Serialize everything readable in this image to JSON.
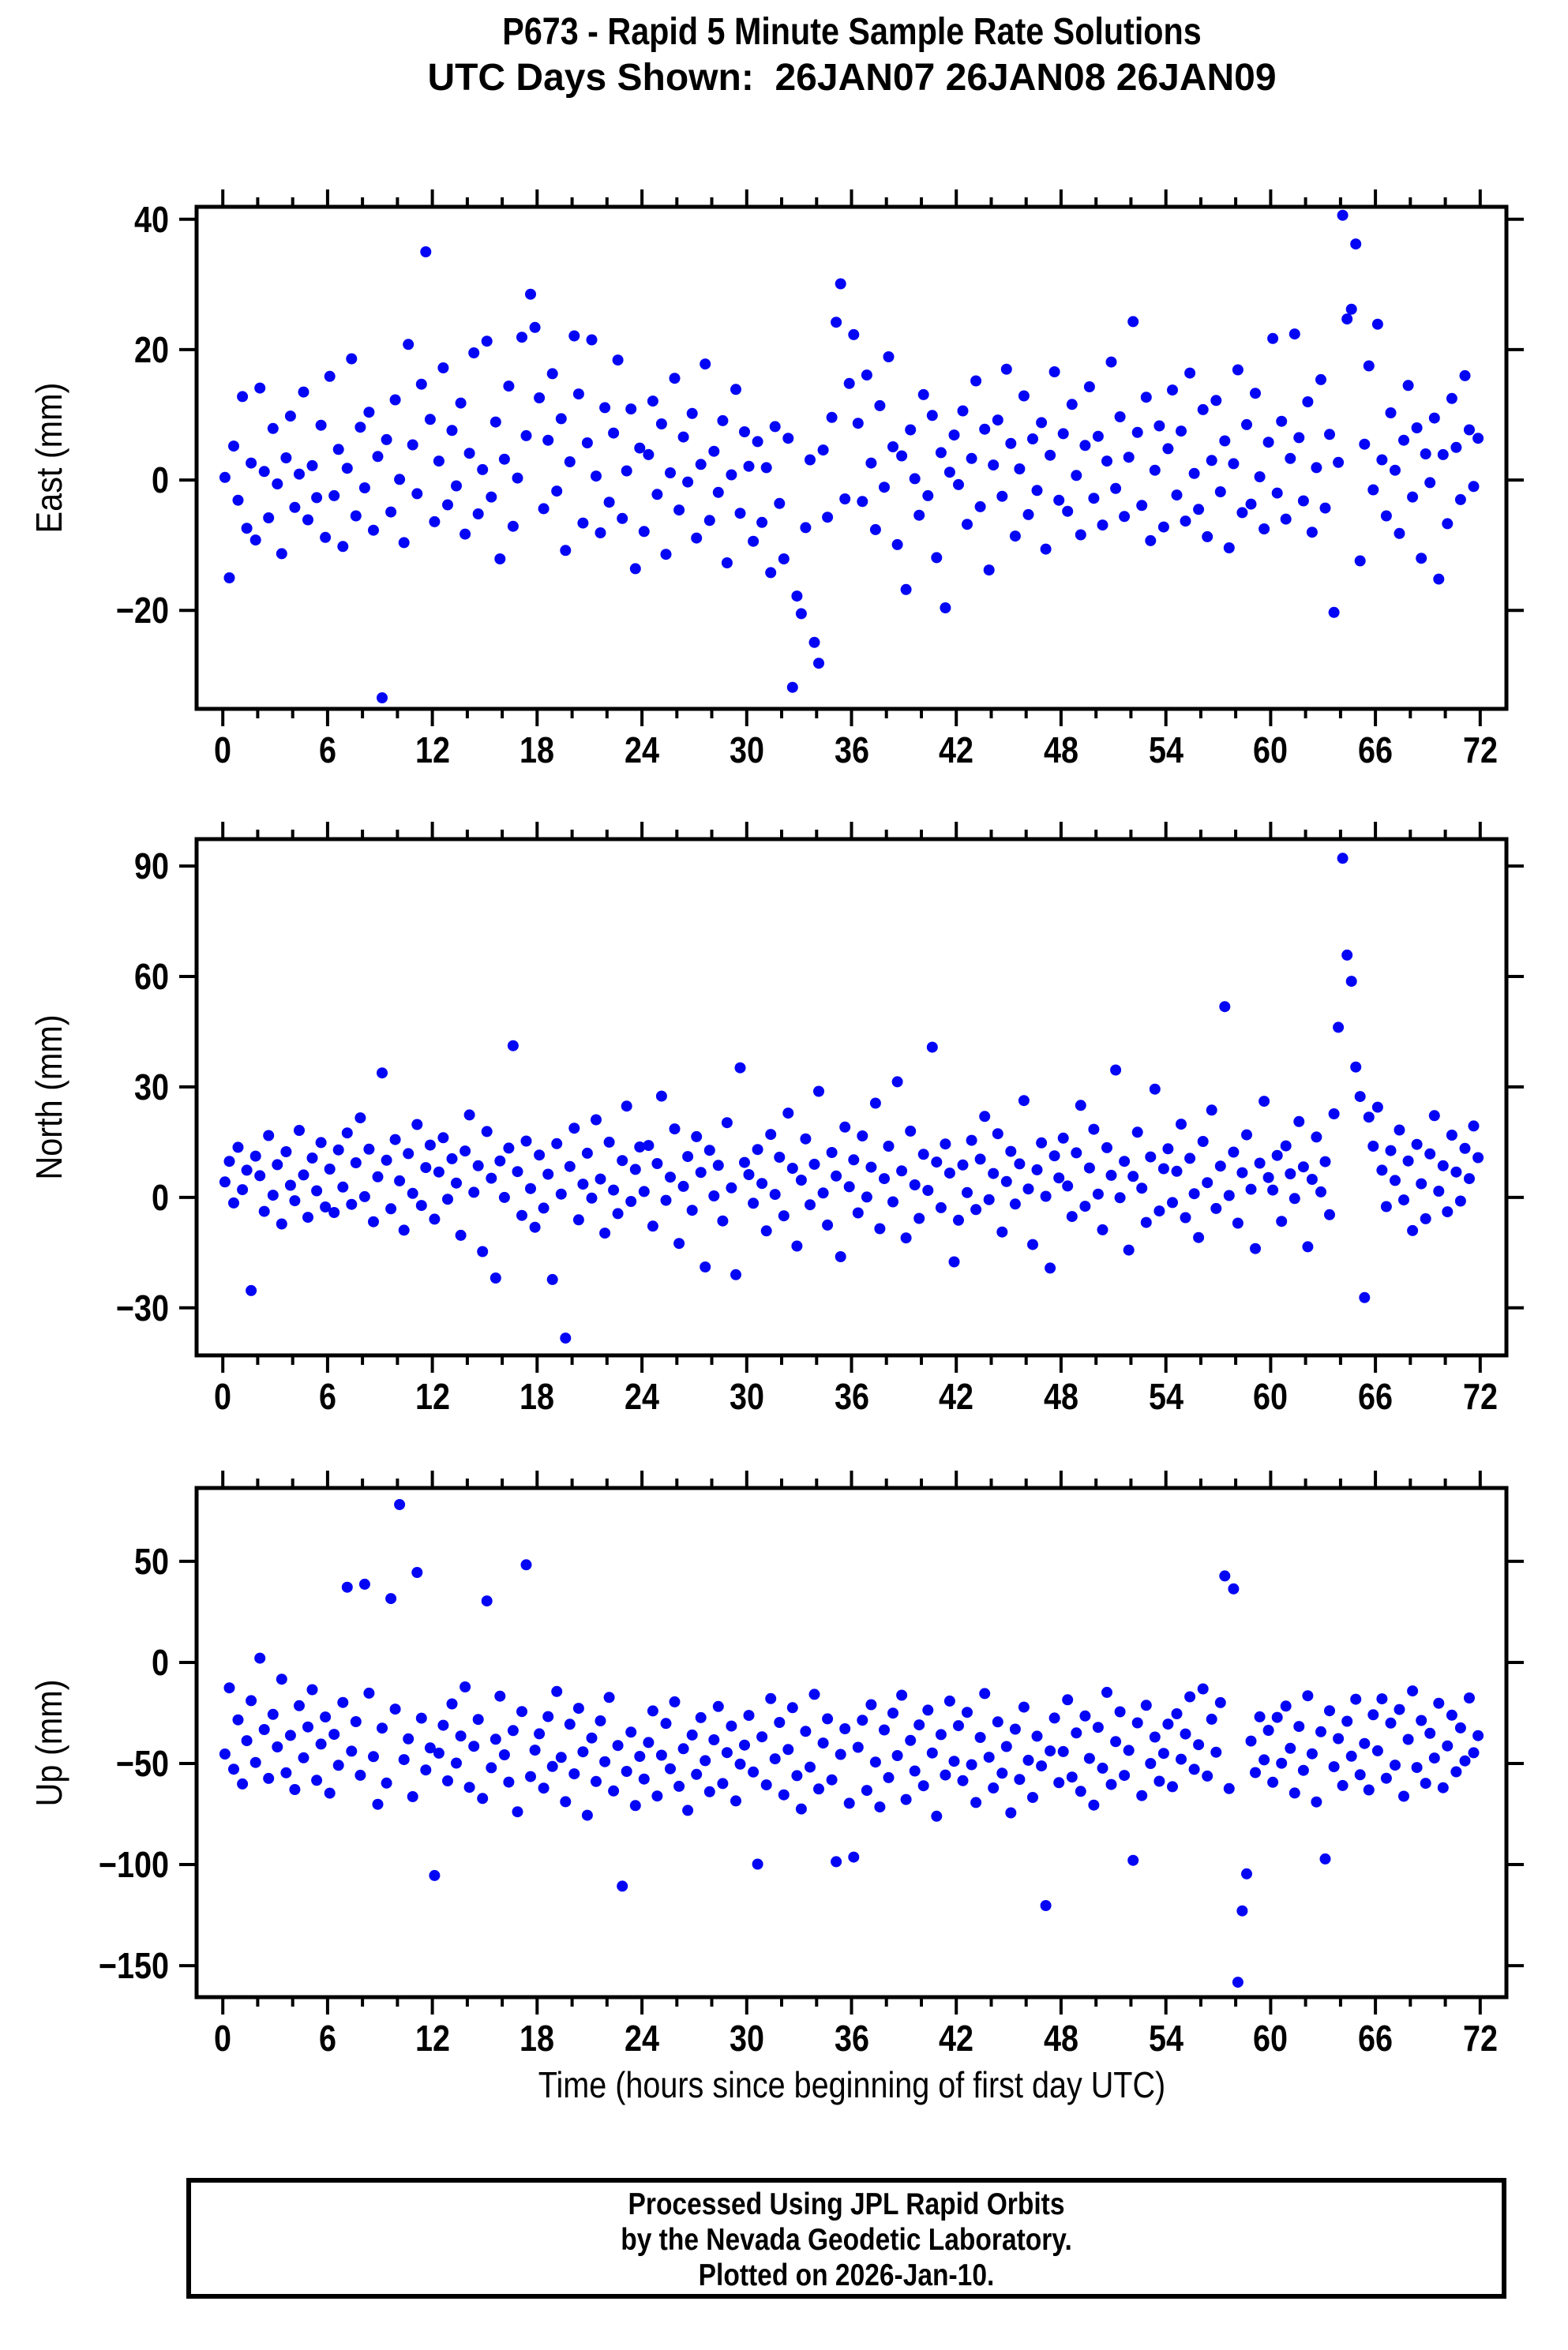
{
  "title": "P673 - Rapid 5 Minute Sample Rate Solutions",
  "subtitle": "UTC Days Shown:  26JAN07 26JAN08 26JAN09",
  "footer": {
    "lines": [
      "Processed Using JPL Rapid Orbits",
      "by the Nevada Geodetic Laboratory.",
      "Plotted on 2026-Jan-10."
    ]
  },
  "chart_data": {
    "type": "scatter",
    "title": "P673 - Rapid 5 Minute Sample Rate Solutions",
    "subtitle": "UTC Days Shown:  26JAN07 26JAN08 26JAN09",
    "marker": {
      "color": "#0505f5",
      "radius_px": 7
    },
    "grid": "off",
    "legend": "none",
    "x": {
      "label": "Time (hours since beginning of first day UTC)",
      "range": [
        -1.5,
        73.5
      ],
      "major_ticks": [
        0,
        6,
        12,
        18,
        24,
        30,
        36,
        42,
        48,
        54,
        60,
        66,
        72
      ],
      "minor_step": 2,
      "start": 0.125,
      "step": 0.25
    },
    "panels": [
      {
        "name": "east",
        "ylabel": "East (mm)",
        "yrange": [
          -35.1,
          41.9
        ],
        "yticks": [
          40,
          20,
          0,
          -20
        ],
        "values": [
          0.4,
          -15.0,
          5.2,
          -3.1,
          12.8,
          -7.4,
          2.6,
          -9.2,
          14.1,
          1.3,
          -5.8,
          7.9,
          -0.6,
          -11.3,
          3.4,
          9.8,
          -4.2,
          0.9,
          13.5,
          -6.1,
          2.2,
          -2.7,
          8.4,
          -8.8,
          15.9,
          -2.4,
          4.7,
          -10.2,
          1.8,
          18.6,
          -5.5,
          8.1,
          -1.2,
          10.4,
          -7.7,
          3.6,
          -33.4,
          6.2,
          -4.9,
          12.3,
          0.1,
          -9.6,
          20.8,
          5.4,
          -2.1,
          14.7,
          35.0,
          9.3,
          -6.4,
          2.9,
          17.2,
          -3.8,
          7.6,
          -0.9,
          11.8,
          -8.3,
          4.1,
          19.5,
          -5.2,
          1.6,
          21.3,
          -2.6,
          8.9,
          -12.1,
          3.2,
          14.4,
          -7.1,
          0.3,
          21.9,
          6.8,
          28.5,
          23.4,
          12.6,
          -4.4,
          6.1,
          16.3,
          -1.7,
          9.4,
          -10.8,
          2.8,
          22.1,
          13.2,
          -6.6,
          5.7,
          21.5,
          0.6,
          -8.1,
          11.1,
          -3.4,
          7.2,
          18.4,
          -5.9,
          1.4,
          10.9,
          -13.6,
          4.9,
          -7.9,
          3.9,
          12.1,
          -2.2,
          8.6,
          -11.4,
          1.1,
          15.6,
          -4.6,
          6.6,
          -0.3,
          10.2,
          -8.9,
          2.4,
          17.8,
          -6.2,
          4.4,
          -1.9,
          9.1,
          -12.7,
          0.8,
          13.9,
          -5.1,
          7.4,
          2.1,
          -9.4,
          5.9,
          -6.5,
          1.9,
          -14.2,
          8.2,
          -3.6,
          -12.1,
          6.4,
          -31.8,
          -17.8,
          -20.5,
          -7.3,
          3.1,
          -24.9,
          -28.1,
          4.6,
          -5.7,
          9.6,
          24.2,
          30.1,
          -2.9,
          14.8,
          22.3,
          8.7,
          -3.3,
          16.1,
          2.6,
          -7.6,
          11.4,
          -1.1,
          18.9,
          5.1,
          -9.9,
          3.7,
          -16.8,
          7.7,
          0.2,
          -5.4,
          13.1,
          -2.4,
          9.9,
          -11.9,
          4.2,
          -19.6,
          1.2,
          6.9,
          -0.7,
          10.6,
          -6.8,
          3.3,
          15.2,
          -4.1,
          7.8,
          -13.8,
          2.3,
          9.2,
          -2.5,
          17.0,
          5.6,
          -8.6,
          1.7,
          12.9,
          -5.3,
          6.3,
          -1.6,
          8.8,
          -10.6,
          3.8,
          16.6,
          -3.1,
          7.1,
          -4.8,
          11.6,
          0.7,
          -8.4,
          5.3,
          14.3,
          -2.8,
          6.7,
          -6.9,
          2.9,
          18.1,
          -1.3,
          9.7,
          -5.6,
          3.5,
          24.3,
          7.3,
          -3.9,
          12.7,
          -9.3,
          1.5,
          8.3,
          -7.2,
          4.8,
          13.8,
          -2.3,
          7.5,
          -6.3,
          16.4,
          1.0,
          -4.5,
          10.8,
          -8.7,
          3.0,
          12.2,
          -1.8,
          6.0,
          -10.4,
          2.5,
          16.9,
          -5.0,
          8.5,
          -3.7,
          13.3,
          0.5,
          -7.5,
          5.8,
          21.7,
          -2.0,
          9.0,
          -6.0,
          3.3,
          22.4,
          6.5,
          -3.2,
          12.0,
          -8.0,
          1.9,
          15.4,
          -4.3,
          7.0,
          -20.3,
          2.7,
          40.6,
          24.7,
          26.2,
          36.2,
          -12.4,
          5.5,
          17.5,
          -1.5,
          23.9,
          3.1,
          -5.5,
          10.3,
          1.5,
          -8.2,
          6.1,
          14.5,
          -2.6,
          8.0,
          -12.0,
          4.0,
          -0.4,
          9.5,
          -15.2,
          3.9,
          -6.7,
          12.5,
          5.0,
          -3.0,
          16.0,
          7.7,
          -1.0,
          6.4
        ]
      },
      {
        "name": "north",
        "ylabel": "North (mm)",
        "yrange": [
          -42.9,
          97.3
        ],
        "yticks": [
          90,
          60,
          30,
          0,
          -30
        ],
        "values": [
          4.2,
          9.8,
          -1.5,
          13.6,
          2.1,
          7.4,
          -25.3,
          11.2,
          5.9,
          -3.8,
          16.8,
          0.6,
          8.9,
          -7.2,
          12.4,
          3.3,
          -0.9,
          18.2,
          6.1,
          -5.4,
          10.7,
          1.8,
          14.9,
          -2.6,
          7.7,
          -4.1,
          12.9,
          2.8,
          17.5,
          -1.9,
          9.4,
          21.6,
          0.2,
          13.1,
          -6.6,
          5.6,
          33.8,
          10.1,
          -3.1,
          15.7,
          4.5,
          -8.9,
          11.9,
          1.1,
          19.8,
          -2.2,
          8.1,
          14.2,
          -5.9,
          6.9,
          16.2,
          -0.5,
          10.5,
          3.9,
          -10.3,
          12.6,
          22.4,
          1.4,
          8.6,
          -14.7,
          17.9,
          5.2,
          -21.9,
          9.9,
          0.0,
          13.4,
          41.2,
          7.0,
          -4.9,
          15.3,
          2.4,
          -8.1,
          11.5,
          -2.9,
          6.3,
          -22.3,
          14.6,
          0.9,
          -38.2,
          8.4,
          18.8,
          -6.1,
          3.6,
          12.0,
          -0.2,
          21.1,
          5.0,
          -9.7,
          15.0,
          2.0,
          -4.4,
          10.0,
          24.8,
          -1.1,
          7.6,
          13.7,
          1.6,
          14.1,
          -7.8,
          9.2,
          27.5,
          -0.8,
          5.5,
          18.6,
          -12.5,
          3.0,
          11.1,
          -3.5,
          16.5,
          6.8,
          -18.9,
          12.8,
          0.4,
          8.7,
          -6.4,
          20.3,
          2.6,
          -21.0,
          35.2,
          9.5,
          6.2,
          -1.6,
          13.0,
          3.8,
          -9.1,
          17.1,
          0.8,
          10.9,
          -5.0,
          22.9,
          7.9,
          -13.2,
          4.7,
          15.9,
          -2.0,
          9.0,
          28.8,
          1.2,
          -7.5,
          12.2,
          5.8,
          -16.1,
          19.1,
          2.9,
          10.2,
          -4.2,
          16.7,
          0.1,
          8.2,
          25.6,
          -8.5,
          5.1,
          13.9,
          -1.2,
          31.4,
          7.2,
          -11.0,
          18.0,
          3.4,
          -5.7,
          11.7,
          1.9,
          40.8,
          9.6,
          -2.8,
          14.5,
          6.6,
          -17.5,
          -6.2,
          8.8,
          1.3,
          15.5,
          -3.3,
          10.4,
          22.0,
          -0.6,
          6.5,
          17.3,
          -9.4,
          4.3,
          12.5,
          -1.8,
          9.1,
          26.3,
          2.3,
          -12.8,
          7.5,
          14.8,
          0.3,
          -19.2,
          11.3,
          5.3,
          16.1,
          3.1,
          -5.2,
          12.1,
          25.0,
          -2.4,
          8.0,
          18.5,
          0.9,
          -8.8,
          13.5,
          6.0,
          34.6,
          -0.1,
          9.8,
          -14.3,
          5.7,
          17.7,
          2.5,
          -6.8,
          11.0,
          29.4,
          -3.7,
          7.8,
          13.2,
          -1.4,
          7.1,
          19.9,
          -5.5,
          10.6,
          1.0,
          -10.9,
          15.2,
          4.0,
          23.7,
          -3.0,
          8.5,
          51.8,
          0.5,
          12.3,
          -7.0,
          6.7,
          17.0,
          2.2,
          -13.9,
          9.3,
          26.1,
          5.4,
          2.0,
          11.4,
          -6.5,
          14.0,
          6.4,
          -0.3,
          20.6,
          8.3,
          -13.4,
          4.9,
          16.4,
          1.5,
          9.7,
          -4.7,
          22.7,
          46.2,
          92.1,
          65.8,
          58.7,
          35.4,
          27.4,
          -27.2,
          21.8,
          13.9,
          24.5,
          7.4,
          -2.5,
          12.7,
          4.6,
          18.3,
          -0.7,
          9.9,
          -9.0,
          14.4,
          3.7,
          -5.8,
          11.8,
          22.2,
          1.7,
          8.6,
          -3.9,
          16.9,
          6.9,
          -1.0,
          13.3,
          5.1,
          19.4,
          10.8
        ]
      },
      {
        "name": "up",
        "ylabel": "Up (mm)",
        "yrange": [
          -165.6,
          86.3
        ],
        "yticks": [
          50,
          0,
          -50,
          -100,
          -150
        ],
        "values": [
          -45.3,
          -12.6,
          -52.8,
          -28.4,
          -60.1,
          -38.7,
          -18.9,
          -49.5,
          2.1,
          -33.2,
          -57.4,
          -25.7,
          -41.8,
          -8.3,
          -54.6,
          -36.1,
          -62.9,
          -21.4,
          -47.2,
          -31.9,
          -13.5,
          -58.3,
          -40.4,
          -27.0,
          -64.7,
          -35.6,
          -50.9,
          -19.8,
          37.2,
          -43.9,
          -29.3,
          -55.8,
          38.7,
          -15.2,
          -46.6,
          -70.2,
          -32.5,
          -59.7,
          31.6,
          -23.1,
          78.1,
          -48.1,
          -37.8,
          -66.4,
          44.5,
          -27.6,
          -53.2,
          -42.3,
          -105.4,
          -44.9,
          -31.1,
          -58.6,
          -20.5,
          -49.8,
          -36.4,
          -12.1,
          -61.8,
          -41.5,
          -28.2,
          -67.3,
          30.4,
          -52.1,
          -38.0,
          -16.7,
          -45.7,
          -59.2,
          -33.7,
          -73.9,
          -24.3,
          48.3,
          -56.5,
          -43.4,
          -35.3,
          -62.2,
          -26.8,
          -51.5,
          -14.4,
          -47.0,
          -68.9,
          -30.6,
          -55.1,
          -22.7,
          -44.2,
          -75.6,
          -37.4,
          -58.9,
          -28.9,
          -49.1,
          -17.3,
          -63.6,
          -41.1,
          -110.7,
          -53.9,
          -34.5,
          -70.8,
          -46.5,
          -57.7,
          -39.6,
          -24.0,
          -66.1,
          -45.9,
          -30.2,
          -52.6,
          -19.5,
          -61.3,
          -42.7,
          -73.2,
          -35.9,
          -55.4,
          -27.3,
          -48.6,
          -64.0,
          -38.3,
          -21.8,
          -59.9,
          -44.6,
          -31.5,
          -68.5,
          -50.3,
          -40.9,
          -26.2,
          -54.2,
          -99.8,
          -36.8,
          -60.6,
          -17.9,
          -47.7,
          -29.7,
          -65.5,
          -43.1,
          -22.4,
          -56.0,
          -72.5,
          -34.1,
          -51.8,
          -15.8,
          -62.6,
          -39.9,
          -27.9,
          -58.1,
          -98.6,
          -45.5,
          -32.8,
          -69.7,
          -96.3,
          -42.0,
          -28.6,
          -63.3,
          -20.9,
          -49.3,
          -71.5,
          -33.4,
          -57.0,
          -25.1,
          -46.1,
          -16.2,
          -67.8,
          -38.6,
          -53.7,
          -30.9,
          -61.0,
          -23.6,
          -44.8,
          -76.1,
          -35.7,
          -55.7,
          -19.1,
          -48.9,
          -31.3,
          -58.5,
          -24.7,
          -50.6,
          -69.3,
          -37.1,
          -15.4,
          -46.9,
          -62.1,
          -29.4,
          -54.8,
          -41.6,
          -74.4,
          -33.0,
          -57.9,
          -22.1,
          -48.4,
          -66.8,
          -36.5,
          -51.2,
          -120.3,
          -43.8,
          -27.5,
          -59.5,
          -44.1,
          -18.5,
          -56.7,
          -34.9,
          -63.8,
          -26.5,
          -47.5,
          -70.6,
          -32.1,
          -52.3,
          -14.8,
          -60.4,
          -39.2,
          -24.4,
          -55.9,
          -43.5,
          -97.9,
          -29.9,
          -65.9,
          -21.2,
          -50.0,
          -36.9,
          -58.8,
          -45.0,
          -30.5,
          -61.5,
          -25.4,
          -47.9,
          -35.4,
          -17.0,
          -52.9,
          -40.7,
          -13.1,
          -56.2,
          -28.1,
          -44.4,
          -19.9,
          42.8,
          -62.4,
          36.4,
          -158.2,
          -122.9,
          -104.6,
          -38.9,
          -54.5,
          -26.9,
          -48.2,
          -33.6,
          -59.3,
          -27.2,
          -49.9,
          -21.6,
          -42.5,
          -64.6,
          -31.7,
          -53.4,
          -16.5,
          -45.2,
          -69.0,
          -34.3,
          -97.2,
          -23.9,
          -51.6,
          -37.7,
          -60.9,
          -29.1,
          -46.4,
          -18.2,
          -55.6,
          -40.1,
          -63.1,
          -25.9,
          -43.7,
          -18.0,
          -57.3,
          -30.0,
          -50.8,
          -23.3,
          -66.2,
          -38.1,
          -14.1,
          -52.0,
          -28.7,
          -59.8,
          -35.1,
          -47.3,
          -20.2,
          -62.0,
          -41.3,
          -26.1,
          -54.1,
          -32.4,
          -48.7,
          -17.6,
          -44.7,
          -36.2
        ]
      }
    ]
  }
}
